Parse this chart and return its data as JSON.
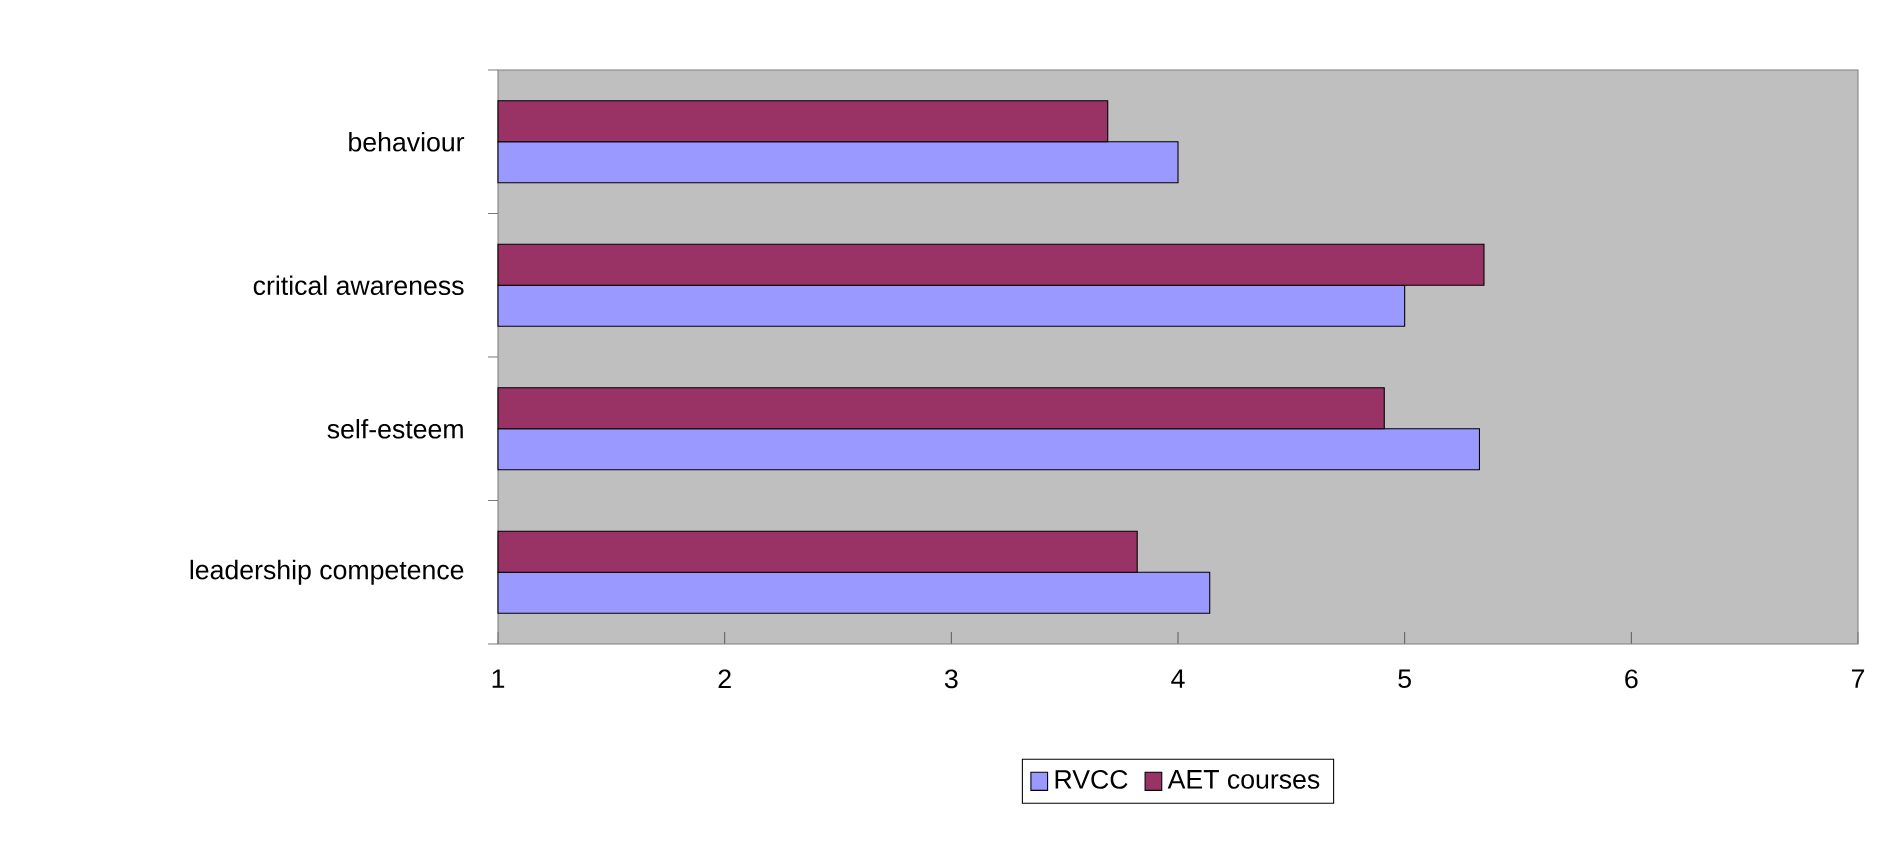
{
  "chart_data": {
    "type": "bar",
    "orientation": "horizontal",
    "categories": [
      "behaviour",
      "critical awareness",
      "self-esteem",
      "leadership competence"
    ],
    "series": [
      {
        "name": "RVCC",
        "color": "#9999ff",
        "values": [
          4.0,
          5.0,
          5.33,
          4.14
        ]
      },
      {
        "name": "AET courses",
        "color": "#993366",
        "values": [
          3.69,
          5.35,
          4.91,
          3.82
        ]
      }
    ],
    "xlim": [
      1,
      7
    ],
    "xticks": [
      1,
      2,
      3,
      4,
      5,
      6,
      7
    ],
    "legend": "bottom"
  }
}
